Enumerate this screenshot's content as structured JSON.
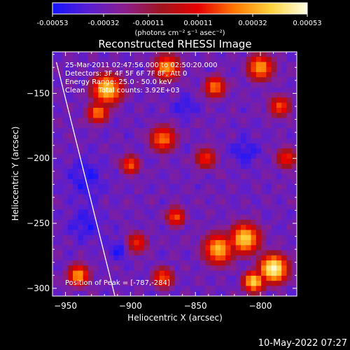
{
  "colorbar": {
    "ticks": [
      "-0.00053",
      "-0.00032",
      "-0.00011",
      "0.00011",
      "0.00032",
      "0.00053"
    ],
    "unit_label": "(photons cm⁻² s⁻¹ asec⁻²)",
    "stops": [
      "#1414ff",
      "#5a1ed2",
      "#8c1e8c",
      "#a0141e",
      "#e60000",
      "#ff7800",
      "#ffd23c",
      "#ffffe6"
    ]
  },
  "header": {
    "title": "Reconstructed RHESSI Image",
    "lines": [
      "25-Mar-2011 02:47:56.000 to 02:50:20.000",
      "Detectors: 3F 4F 5F 6F 7F 8F, Att 0",
      "Energy Range: 25.0 - 50.0 keV",
      "Clean      Total counts: 3.92E+03"
    ],
    "peak_text": "Position of Peak = [-787,-284]"
  },
  "footer": {
    "timestamp": "10-May-2022 07:27"
  },
  "chart_data": {
    "type": "heatmap",
    "title": "Reconstructed RHESSI Image",
    "xlabel": "Heliocentric X (arcsec)",
    "ylabel": "Heliocentric Y (arcsec)",
    "xlim": [
      -960,
      -772
    ],
    "ylim": [
      -306,
      -118
    ],
    "xticks": [
      -950,
      -900,
      -850,
      -800
    ],
    "yticks": [
      -300,
      -250,
      -200,
      -150
    ],
    "grid": false,
    "value_range": [
      -0.00053,
      0.00053
    ],
    "peak_position": [
      -787,
      -284
    ],
    "limb_line": {
      "x": [
        -957,
        -912
      ],
      "y": [
        -126,
        -306
      ]
    },
    "hot_regions": [
      {
        "x": -872,
        "y": -130,
        "radius": 12,
        "level": 0.75
      },
      {
        "x": -918,
        "y": -147,
        "radius": 14,
        "level": 0.85
      },
      {
        "x": -925,
        "y": -165,
        "radius": 10,
        "level": 0.7
      },
      {
        "x": -800,
        "y": -130,
        "radius": 12,
        "level": 0.75
      },
      {
        "x": -835,
        "y": -145,
        "radius": 10,
        "level": 0.7
      },
      {
        "x": -785,
        "y": -160,
        "radius": 10,
        "level": 0.65
      },
      {
        "x": -875,
        "y": -185,
        "radius": 12,
        "level": 0.7
      },
      {
        "x": -900,
        "y": -205,
        "radius": 9,
        "level": 0.65
      },
      {
        "x": -842,
        "y": -200,
        "radius": 10,
        "level": 0.6
      },
      {
        "x": -780,
        "y": -200,
        "radius": 10,
        "level": 0.6
      },
      {
        "x": -865,
        "y": -245,
        "radius": 9,
        "level": 0.65
      },
      {
        "x": -895,
        "y": -265,
        "radius": 10,
        "level": 0.6
      },
      {
        "x": -832,
        "y": -270,
        "radius": 14,
        "level": 0.8
      },
      {
        "x": -812,
        "y": -262,
        "radius": 14,
        "level": 0.85
      },
      {
        "x": -790,
        "y": -285,
        "radius": 13,
        "level": 0.95
      },
      {
        "x": -805,
        "y": -295,
        "radius": 10,
        "level": 0.85
      },
      {
        "x": -940,
        "y": -290,
        "radius": 10,
        "level": 0.75
      },
      {
        "x": -875,
        "y": -292,
        "radius": 10,
        "level": 0.65
      }
    ],
    "cold_regions": [
      {
        "x": -935,
        "y": -215,
        "radius": 14
      },
      {
        "x": -935,
        "y": -250,
        "radius": 12
      },
      {
        "x": -812,
        "y": -195,
        "radius": 10
      },
      {
        "x": -858,
        "y": -160,
        "radius": 8
      },
      {
        "x": -910,
        "y": -270,
        "radius": 8
      }
    ]
  }
}
